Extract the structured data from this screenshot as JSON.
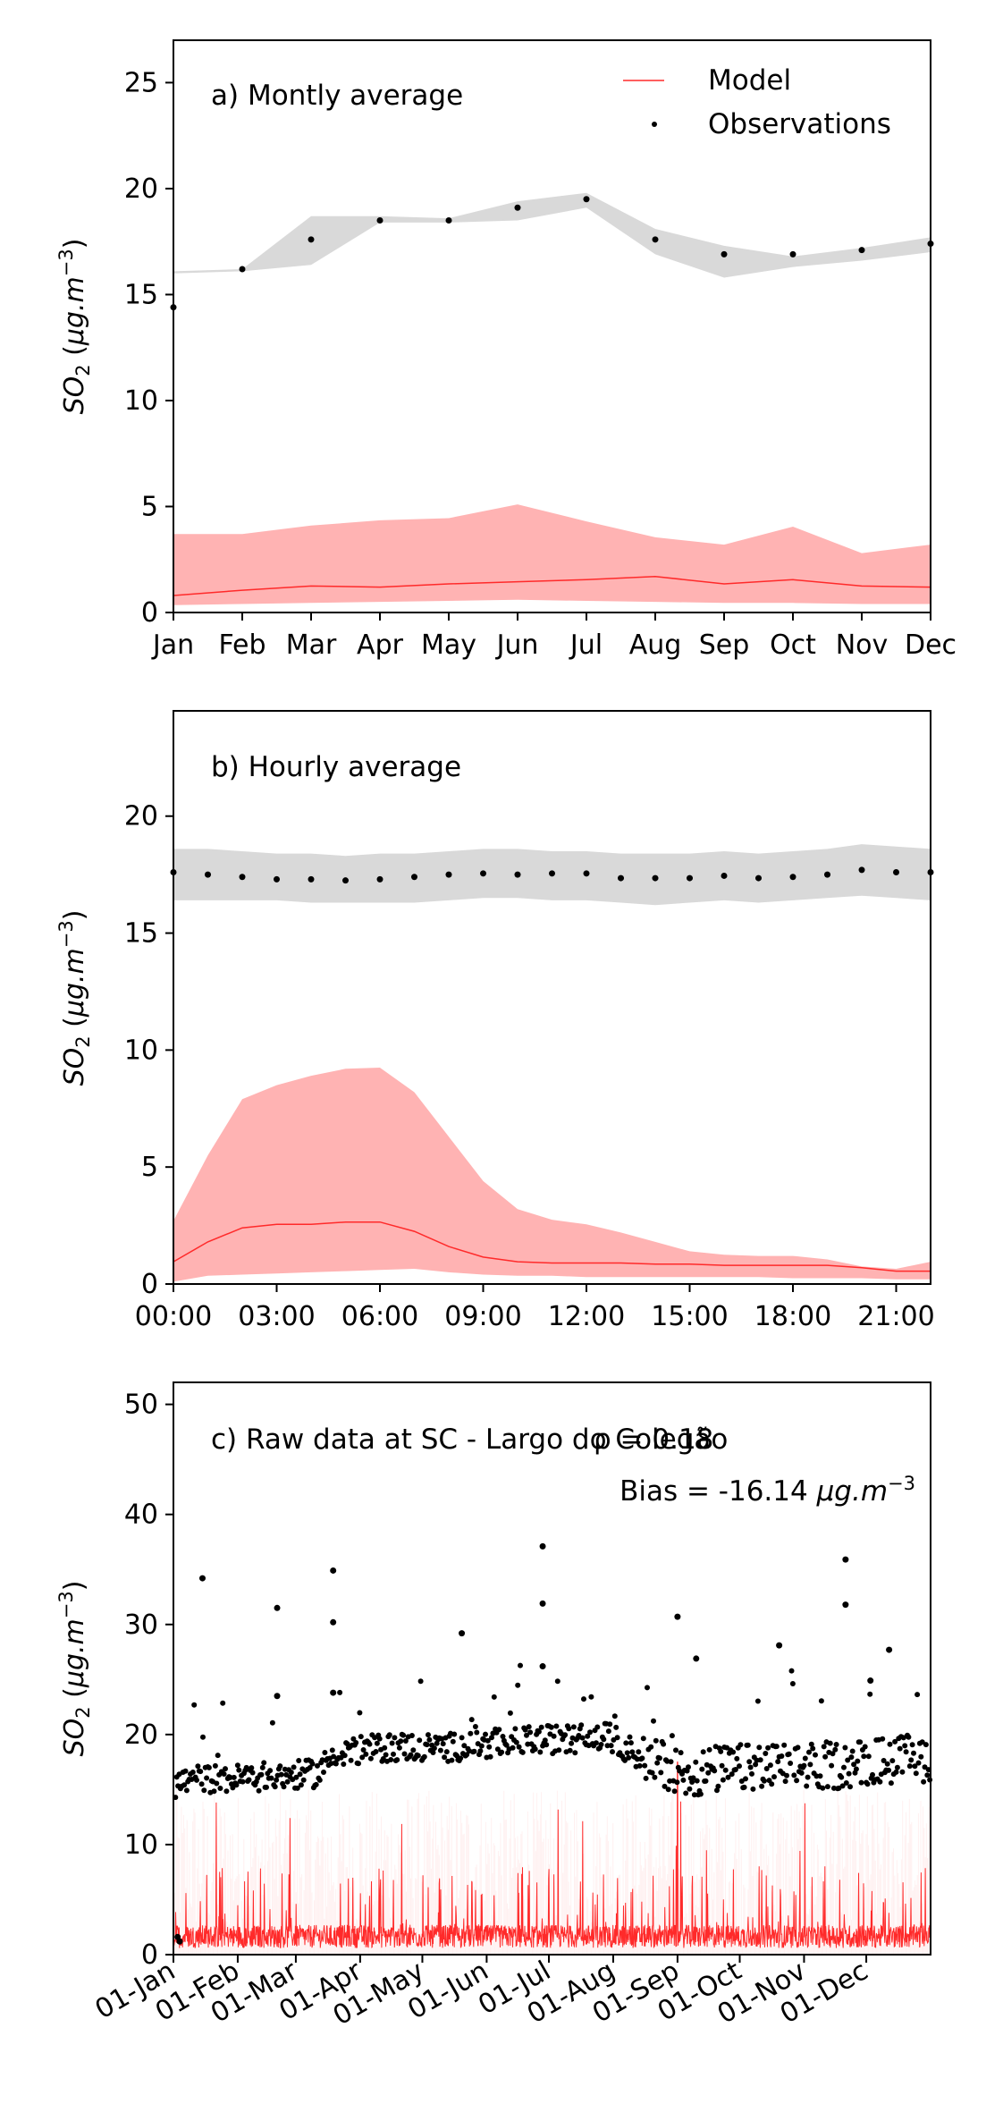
{
  "colors": {
    "model": "#ff2a2a",
    "model_band": "#ffb3b3",
    "obs": "#000000",
    "obs_band": "#d9d9d9"
  },
  "legend": {
    "model": "Model",
    "obs": "Observations"
  },
  "chart_data": [
    {
      "type": "line",
      "title": "a) Montly average",
      "ylabel": "SO2 (μg.m^-3)",
      "xlabel": "",
      "ylim": [
        0,
        27
      ],
      "yticks": [
        0,
        5,
        10,
        15,
        20,
        25
      ],
      "categories": [
        "Jan",
        "Feb",
        "Mar",
        "Apr",
        "May",
        "Jun",
        "Jul",
        "Aug",
        "Sep",
        "Oct",
        "Nov",
        "Dec"
      ],
      "legend_position": "top-right",
      "series": [
        {
          "name": "Model",
          "kind": "line",
          "values": [
            0.8,
            1.05,
            1.25,
            1.2,
            1.35,
            1.45,
            1.55,
            1.7,
            1.35,
            1.55,
            1.25,
            1.2
          ],
          "band_low": [
            0.35,
            0.4,
            0.45,
            0.5,
            0.55,
            0.6,
            0.55,
            0.5,
            0.45,
            0.45,
            0.4,
            0.4
          ],
          "band_high": [
            3.7,
            3.7,
            4.1,
            4.35,
            4.45,
            5.1,
            4.3,
            3.55,
            3.2,
            4.05,
            2.8,
            3.2
          ]
        },
        {
          "name": "Observations",
          "kind": "scatter",
          "values": [
            14.4,
            16.2,
            17.6,
            18.5,
            18.5,
            19.1,
            19.5,
            17.6,
            16.9,
            16.9,
            17.1,
            17.4
          ],
          "band_low": [
            16.0,
            16.1,
            16.4,
            18.4,
            18.4,
            18.5,
            19.1,
            16.9,
            15.8,
            16.3,
            16.6,
            17.0
          ],
          "band_high": [
            16.1,
            16.2,
            18.7,
            18.7,
            18.6,
            19.4,
            19.8,
            18.1,
            17.3,
            16.8,
            17.2,
            17.7
          ]
        }
      ]
    },
    {
      "type": "line",
      "title": "b) Hourly average",
      "ylabel": "SO2 (μg.m^-3)",
      "xlabel": "",
      "ylim": [
        0,
        24.5
      ],
      "yticks": [
        0,
        5,
        10,
        15,
        20
      ],
      "x_tick_labels": [
        "00:00",
        "03:00",
        "06:00",
        "09:00",
        "12:00",
        "15:00",
        "18:00",
        "21:00"
      ],
      "x_tick_hours": [
        0,
        3,
        6,
        9,
        12,
        15,
        18,
        21
      ],
      "xlim": [
        0,
        22
      ],
      "x": [
        0,
        1,
        2,
        3,
        4,
        5,
        6,
        7,
        8,
        9,
        10,
        11,
        12,
        13,
        14,
        15,
        16,
        17,
        18,
        19,
        20,
        21,
        22
      ],
      "series": [
        {
          "name": "Model",
          "kind": "line",
          "values": [
            0.95,
            1.8,
            2.4,
            2.55,
            2.55,
            2.65,
            2.65,
            2.25,
            1.6,
            1.15,
            0.95,
            0.9,
            0.9,
            0.9,
            0.85,
            0.85,
            0.8,
            0.8,
            0.8,
            0.8,
            0.7,
            0.55,
            0.55
          ],
          "band_low": [
            0.1,
            0.35,
            0.4,
            0.45,
            0.5,
            0.55,
            0.6,
            0.65,
            0.5,
            0.4,
            0.35,
            0.35,
            0.3,
            0.3,
            0.3,
            0.3,
            0.3,
            0.3,
            0.25,
            0.25,
            0.25,
            0.2,
            0.2
          ],
          "band_high": [
            2.7,
            5.5,
            7.9,
            8.5,
            8.9,
            9.2,
            9.25,
            8.2,
            6.3,
            4.4,
            3.2,
            2.75,
            2.55,
            2.2,
            1.8,
            1.4,
            1.25,
            1.2,
            1.2,
            1.05,
            0.75,
            0.65,
            0.95
          ]
        },
        {
          "name": "Observations",
          "kind": "scatter",
          "values": [
            17.6,
            17.5,
            17.4,
            17.3,
            17.3,
            17.25,
            17.3,
            17.4,
            17.5,
            17.55,
            17.5,
            17.55,
            17.55,
            17.35,
            17.35,
            17.35,
            17.45,
            17.35,
            17.4,
            17.5,
            17.7,
            17.6,
            17.6
          ],
          "band_low": [
            16.4,
            16.4,
            16.4,
            16.4,
            16.3,
            16.3,
            16.3,
            16.3,
            16.4,
            16.5,
            16.5,
            16.4,
            16.4,
            16.3,
            16.2,
            16.3,
            16.4,
            16.3,
            16.4,
            16.5,
            16.6,
            16.5,
            16.4
          ],
          "band_high": [
            18.6,
            18.6,
            18.5,
            18.4,
            18.4,
            18.3,
            18.4,
            18.4,
            18.5,
            18.6,
            18.6,
            18.5,
            18.5,
            18.4,
            18.4,
            18.4,
            18.5,
            18.4,
            18.5,
            18.6,
            18.8,
            18.7,
            18.6
          ]
        }
      ]
    },
    {
      "type": "scatter",
      "title": "c) Raw data at SC - Largo do Colegão",
      "rho_text": "ρ = 0.18",
      "bias_text": "Bias = -16.14 μg.m^-3",
      "ylabel": "SO2 (μg.m^-3)",
      "xlabel": "",
      "ylim": [
        0,
        52
      ],
      "yticks": [
        0,
        10,
        20,
        30,
        40,
        50
      ],
      "x_unit": "day of year",
      "xlim": [
        0,
        365
      ],
      "x_tick_labels": [
        "01-Jan",
        "01-Feb",
        "01-Mar",
        "01-Apr",
        "01-May",
        "01-Jun",
        "01-Jul",
        "01-Aug",
        "01-Sep",
        "01-Oct",
        "01-Nov",
        "01-Dec"
      ],
      "x_tick_days": [
        0,
        31,
        59,
        90,
        120,
        151,
        181,
        212,
        243,
        273,
        304,
        334
      ],
      "obs_baseline": {
        "x": [
          0,
          12,
          30,
          45,
          58,
          70,
          78,
          90,
          110,
          130,
          150,
          170,
          190,
          210,
          225,
          240,
          250,
          260,
          280,
          300,
          320,
          340,
          365
        ],
        "y": [
          15.5,
          16.0,
          16.0,
          16.2,
          16.3,
          16.5,
          18.5,
          18.6,
          18.9,
          18.8,
          19.1,
          19.5,
          19.6,
          19.8,
          18.0,
          17.1,
          16.3,
          16.8,
          17.0,
          17.1,
          17.2,
          17.6,
          17.9
        ]
      },
      "obs_outliers": [
        {
          "x": 14,
          "y": 34.2
        },
        {
          "x": 50,
          "y": 31.5
        },
        {
          "x": 50,
          "y": 23.5
        },
        {
          "x": 77,
          "y": 34.9
        },
        {
          "x": 77,
          "y": 30.2
        },
        {
          "x": 77,
          "y": 23.8
        },
        {
          "x": 139,
          "y": 29.2
        },
        {
          "x": 178,
          "y": 37.1
        },
        {
          "x": 178,
          "y": 31.9
        },
        {
          "x": 178,
          "y": 26.2
        },
        {
          "x": 243,
          "y": 30.7
        },
        {
          "x": 252,
          "y": 26.9
        },
        {
          "x": 292,
          "y": 28.1
        },
        {
          "x": 324,
          "y": 35.9
        },
        {
          "x": 324,
          "y": 31.8
        },
        {
          "x": 336,
          "y": 24.9
        },
        {
          "x": 345,
          "y": 27.7
        },
        {
          "x": 2,
          "y": 1.6
        },
        {
          "x": 3,
          "y": 1.2
        }
      ],
      "model_summary": {
        "typical": 1.5,
        "typical_peak": 4.5,
        "max": 17.5,
        "max_day": 243
      }
    }
  ]
}
